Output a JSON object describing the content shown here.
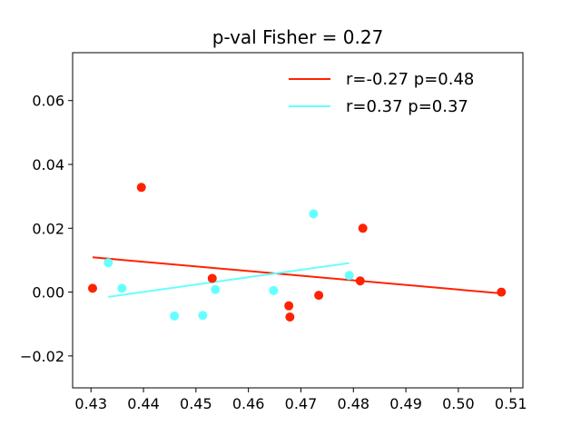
{
  "chart_data": {
    "type": "scatter",
    "title": "p-val Fisher = 0.27",
    "xlabel": "",
    "ylabel": "",
    "xlim": [
      0.4265,
      0.5123
    ],
    "ylim": [
      -0.03,
      0.075
    ],
    "xticks": [
      0.43,
      0.44,
      0.45,
      0.46,
      0.47,
      0.48,
      0.49,
      0.5,
      0.51
    ],
    "xtick_labels": [
      "0.43",
      "0.44",
      "0.45",
      "0.46",
      "0.47",
      "0.48",
      "0.49",
      "0.50",
      "0.51"
    ],
    "yticks": [
      -0.02,
      0.0,
      0.02,
      0.04,
      0.06
    ],
    "ytick_labels": [
      "−0.02",
      "0.00",
      "0.02",
      "0.04",
      "0.06"
    ],
    "grid": false,
    "legend_position": "top-right",
    "series": [
      {
        "name": "r=-0.27 p=0.48",
        "color": "#ff2200",
        "points": [
          [
            0.4303,
            0.0012
          ],
          [
            0.4396,
            0.0328
          ],
          [
            0.4531,
            0.0043
          ],
          [
            0.4677,
            -0.0043
          ],
          [
            0.4679,
            -0.0078
          ],
          [
            0.4734,
            -0.001
          ],
          [
            0.4813,
            0.0035
          ],
          [
            0.4818,
            0.02
          ],
          [
            0.5082,
            0.0
          ]
        ],
        "fit": {
          "x": [
            0.4303,
            0.5082
          ],
          "y": [
            0.0109,
            -0.0004
          ]
        }
      },
      {
        "name": "r=0.37 p=0.37",
        "color": "#66ffff",
        "points": [
          [
            0.4333,
            0.0092
          ],
          [
            0.4359,
            0.0012
          ],
          [
            0.4459,
            -0.0075
          ],
          [
            0.4513,
            -0.0073
          ],
          [
            0.4537,
            0.0008
          ],
          [
            0.4648,
            0.0005
          ],
          [
            0.4724,
            0.0245
          ],
          [
            0.4792,
            0.0052
          ]
        ],
        "fit": {
          "x": [
            0.4333,
            0.4792
          ],
          "y": [
            -0.0015,
            0.0091
          ]
        }
      }
    ]
  }
}
